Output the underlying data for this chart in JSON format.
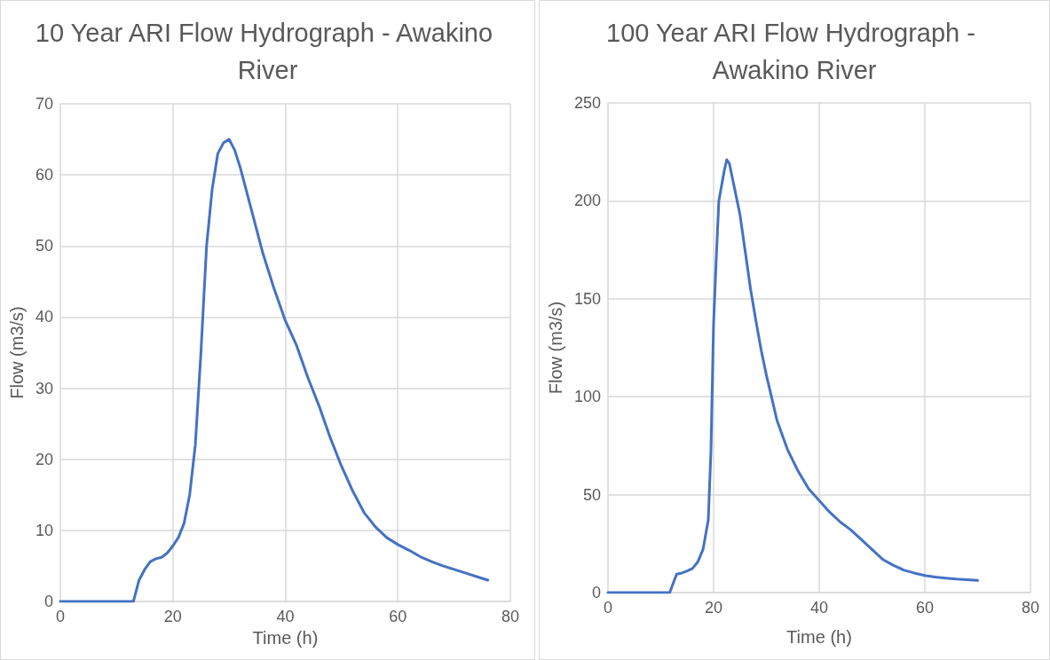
{
  "chart_data": [
    {
      "type": "line",
      "title": "10 Year ARI Flow Hydrograph - Awakino River",
      "xlabel": "Time (h)",
      "ylabel": "Flow (m3/s)",
      "x": [
        0,
        2,
        4,
        6,
        8,
        10,
        12,
        13,
        14,
        15,
        16,
        17,
        18,
        19,
        20,
        21,
        22,
        23,
        24,
        25,
        26,
        27,
        28,
        29,
        30,
        31,
        32,
        33,
        34,
        35,
        36,
        38,
        40,
        42,
        44,
        46,
        48,
        50,
        52,
        54,
        56,
        58,
        60,
        62,
        64,
        66,
        68,
        70,
        72,
        74,
        76
      ],
      "series": [
        {
          "color": "#4472c4",
          "values": [
            0,
            0,
            0,
            0,
            0,
            0,
            0,
            0,
            3,
            4.5,
            5.6,
            6,
            6.2,
            6.8,
            7.8,
            9,
            11,
            15,
            22,
            35,
            50,
            58,
            63,
            64.5,
            65,
            63.5,
            61,
            58,
            55,
            52,
            49,
            44,
            39.5,
            36,
            31.5,
            27.5,
            23,
            19,
            15.5,
            12.5,
            10.5,
            9,
            8,
            7.2,
            6.3,
            5.6,
            5,
            4.5,
            4,
            3.5,
            3
          ]
        }
      ],
      "xlim": [
        0,
        80
      ],
      "xticks": [
        0,
        20,
        40,
        60,
        80
      ],
      "ylim": [
        0,
        70
      ],
      "yticks": [
        0,
        10,
        20,
        30,
        40,
        50,
        60,
        70
      ],
      "grid": true,
      "marker": "none",
      "line_style": "solid"
    },
    {
      "type": "line",
      "title": "100 Year ARI Flow Hydrograph - Awakino River",
      "xlabel": "Time (h)",
      "ylabel": "Flow (m3/s)",
      "x": [
        0,
        4,
        8,
        11.7,
        13,
        14,
        15,
        16,
        17,
        18,
        19,
        19.5,
        20,
        20.5,
        21,
        22,
        22.5,
        23,
        24,
        25,
        26,
        27,
        28,
        29,
        30,
        32,
        34,
        36,
        38,
        40,
        42,
        44,
        46,
        48,
        50,
        52,
        54,
        56,
        58,
        60,
        62,
        64,
        66,
        68,
        70
      ],
      "series": [
        {
          "color": "#4472c4",
          "values": [
            0,
            0,
            0,
            0,
            9.4,
            10,
            11,
            12.3,
            15.6,
            22,
            37,
            72,
            137,
            170,
            200,
            215,
            221,
            219,
            206,
            193,
            174,
            155,
            139,
            124,
            111,
            88,
            73,
            62,
            53,
            47,
            41,
            36,
            32,
            27,
            22,
            17,
            14,
            11.5,
            10,
            8.7,
            7.9,
            7.4,
            6.9,
            6.6,
            6.2
          ]
        }
      ],
      "xlim": [
        0,
        80
      ],
      "xticks": [
        0,
        20,
        40,
        60,
        80
      ],
      "ylim": [
        0,
        250
      ],
      "yticks": [
        0,
        50,
        100,
        150,
        200,
        250
      ],
      "grid": true,
      "marker": "none",
      "line_style": "solid"
    }
  ]
}
